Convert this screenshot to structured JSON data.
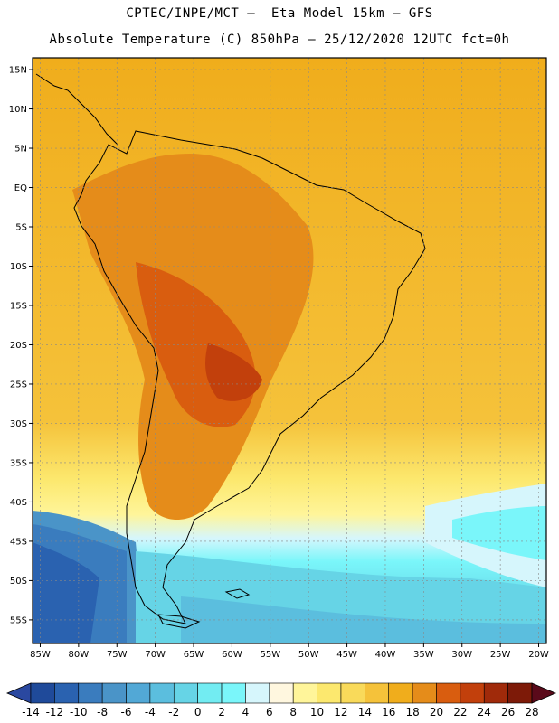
{
  "header": {
    "line1": "CPTEC/INPE/MCT –  Eta Model 15km – GFS",
    "line2": "Absolute Temperature (C) 850hPa – 25/12/2020 12UTC fct=0h"
  },
  "map": {
    "lon_range": [
      -86,
      -19
    ],
    "lat_range": [
      16.5,
      -58
    ],
    "lat_ticks": [
      {
        "value": 15,
        "label": "15N"
      },
      {
        "value": 10,
        "label": "10N"
      },
      {
        "value": 5,
        "label": "5N"
      },
      {
        "value": 0,
        "label": "EQ"
      },
      {
        "value": -5,
        "label": "5S"
      },
      {
        "value": -10,
        "label": "10S"
      },
      {
        "value": -15,
        "label": "15S"
      },
      {
        "value": -20,
        "label": "20S"
      },
      {
        "value": -25,
        "label": "25S"
      },
      {
        "value": -30,
        "label": "30S"
      },
      {
        "value": -35,
        "label": "35S"
      },
      {
        "value": -40,
        "label": "40S"
      },
      {
        "value": -45,
        "label": "45S"
      },
      {
        "value": -50,
        "label": "50S"
      },
      {
        "value": -55,
        "label": "55S"
      }
    ],
    "lon_ticks": [
      {
        "value": -85,
        "label": "85W"
      },
      {
        "value": -80,
        "label": "80W"
      },
      {
        "value": -75,
        "label": "75W"
      },
      {
        "value": -70,
        "label": "70W"
      },
      {
        "value": -65,
        "label": "65W"
      },
      {
        "value": -60,
        "label": "60W"
      },
      {
        "value": -55,
        "label": "55W"
      },
      {
        "value": -50,
        "label": "50W"
      },
      {
        "value": -45,
        "label": "45W"
      },
      {
        "value": -40,
        "label": "40W"
      },
      {
        "value": -35,
        "label": "35W"
      },
      {
        "value": -30,
        "label": "30W"
      },
      {
        "value": -25,
        "label": "25W"
      },
      {
        "value": -20,
        "label": "20W"
      }
    ]
  },
  "colorbar": {
    "labels": [
      "-14",
      "-12",
      "-10",
      "-8",
      "-6",
      "-4",
      "-2",
      "0",
      "2",
      "4",
      "6",
      "8",
      "10",
      "12",
      "14",
      "16",
      "18",
      "20",
      "22",
      "24",
      "26",
      "28"
    ],
    "colors": [
      "#2a48a0",
      "#1f4a9a",
      "#2a62b0",
      "#3a7cbe",
      "#4a94c8",
      "#52a8d6",
      "#5bbede",
      "#66d4e6",
      "#72ecf2",
      "#7af6fa",
      "#d6f6fc",
      "#fff7df",
      "#fff59a",
      "#fce86e",
      "#f9da5a",
      "#f5c23a",
      "#f0ad1c",
      "#e58c1a",
      "#d95d0f",
      "#c2400c",
      "#a02a0a",
      "#7d1a08",
      "#5a0a1a"
    ]
  }
}
